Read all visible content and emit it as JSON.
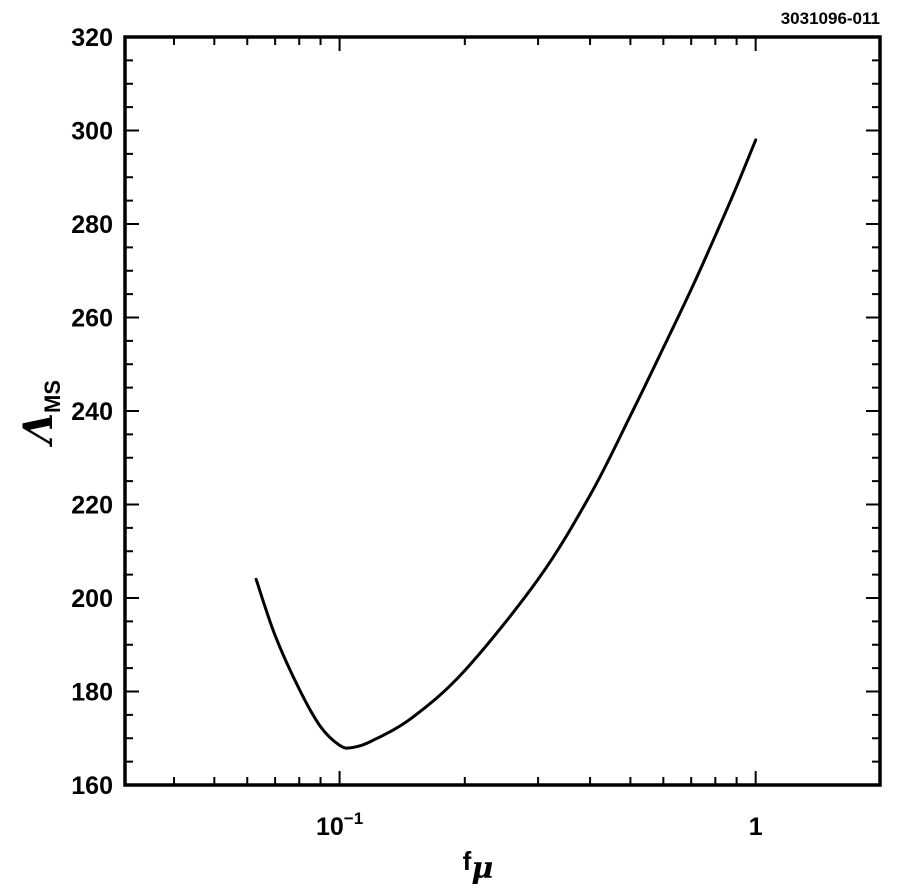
{
  "figure_id": "3031096-011",
  "chart_data": {
    "type": "line",
    "title": "",
    "xlabel": {
      "base": "f",
      "subscript": "μ"
    },
    "ylabel": {
      "base": "Λ",
      "subscript": "MS"
    },
    "xscale": "log",
    "xlim": [
      0.0305,
      1.99
    ],
    "ylim": [
      160,
      320
    ],
    "x_ticks": [
      {
        "value": 0.1,
        "base": "10",
        "exponent": "−1"
      },
      {
        "value": 1,
        "base": "1",
        "exponent": ""
      }
    ],
    "y_ticks": [
      160,
      180,
      200,
      220,
      240,
      260,
      280,
      300,
      320
    ],
    "grid": false,
    "legend": "none",
    "series": [
      {
        "color": "#000000",
        "x": [
          0.063,
          0.07,
          0.08,
          0.09,
          0.1,
          0.107,
          0.12,
          0.15,
          0.2,
          0.3,
          0.4,
          0.5,
          0.6,
          0.7,
          0.8,
          0.9,
          1.0
        ],
        "y": [
          204,
          192,
          180.5,
          172.5,
          168.5,
          168,
          169.5,
          174.5,
          184.5,
          204,
          222,
          239,
          253.5,
          266,
          277.5,
          288,
          298
        ]
      }
    ]
  }
}
